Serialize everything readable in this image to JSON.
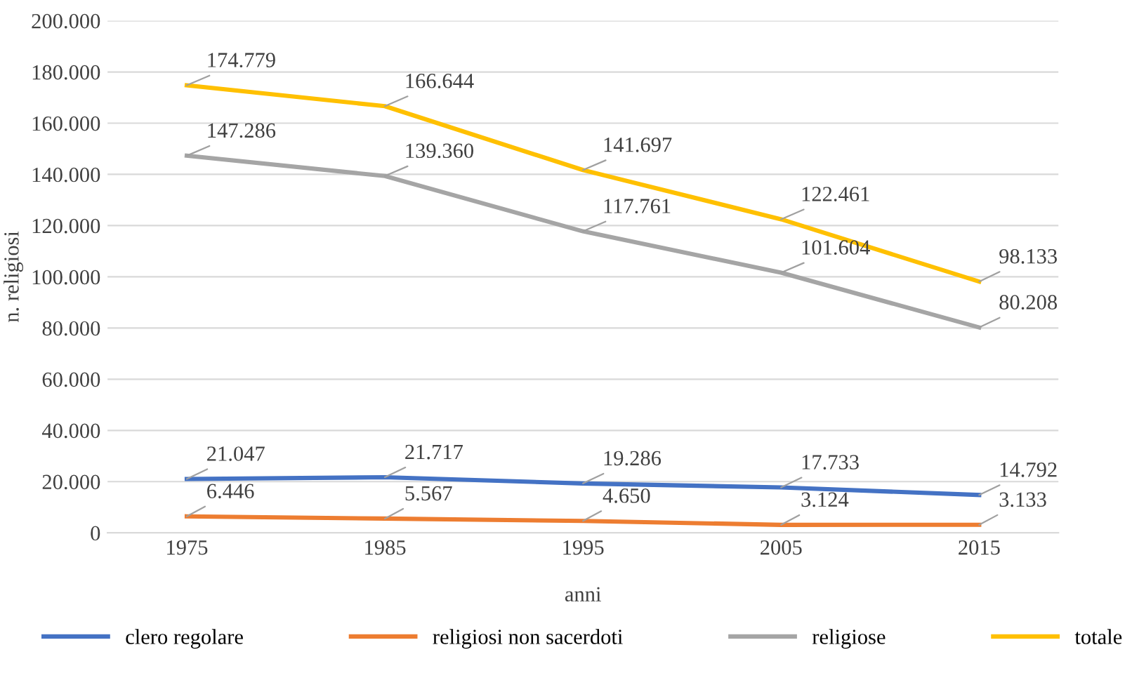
{
  "chart_data": {
    "type": "line",
    "xlabel": "anni",
    "ylabel": "n. religiosi",
    "categories": [
      "1975",
      "1985",
      "1995",
      "2005",
      "2015"
    ],
    "series": [
      {
        "name": "clero regolare",
        "color": "#4472c4",
        "values": [
          21047,
          21717,
          19286,
          17733,
          14792
        ],
        "value_labels": [
          "21.047",
          "21.717",
          "19.286",
          "17.733",
          "14.792"
        ]
      },
      {
        "name": "religiosi non sacerdoti",
        "color": "#ed7d31",
        "values": [
          6446,
          5567,
          4650,
          3124,
          3133
        ],
        "value_labels": [
          "6.446",
          "5.567",
          "4.650",
          "3.124",
          "3.133"
        ]
      },
      {
        "name": "religiose",
        "color": "#a5a5a5",
        "values": [
          147286,
          139360,
          117761,
          101604,
          80208
        ],
        "value_labels": [
          "147.286",
          "139.360",
          "117.761",
          "101.604",
          "80.208"
        ]
      },
      {
        "name": "totale",
        "color": "#ffc000",
        "values": [
          174779,
          166644,
          141697,
          122461,
          98133
        ],
        "value_labels": [
          "174.779",
          "166.644",
          "141.697",
          "122.461",
          "98.133"
        ]
      }
    ],
    "ylim": [
      0,
      200000
    ],
    "yticks": [
      0,
      {
        "value": 20000,
        "label": "20.000"
      },
      {
        "value": 40000,
        "label": "40.000"
      },
      {
        "value": 60000,
        "label": "60.000"
      },
      {
        "value": 80000,
        "label": "80.000"
      },
      {
        "value": 100000,
        "label": "100.000"
      },
      {
        "value": 120000,
        "label": "120.000"
      },
      {
        "value": 140000,
        "label": "140.000"
      },
      {
        "value": 160000,
        "label": "160.000"
      },
      {
        "value": 180000,
        "label": "180.000"
      },
      {
        "value": 200000,
        "label": "200.000"
      }
    ],
    "grid": "y",
    "legend": "bottom",
    "marker": "none",
    "line_style": "solid"
  }
}
